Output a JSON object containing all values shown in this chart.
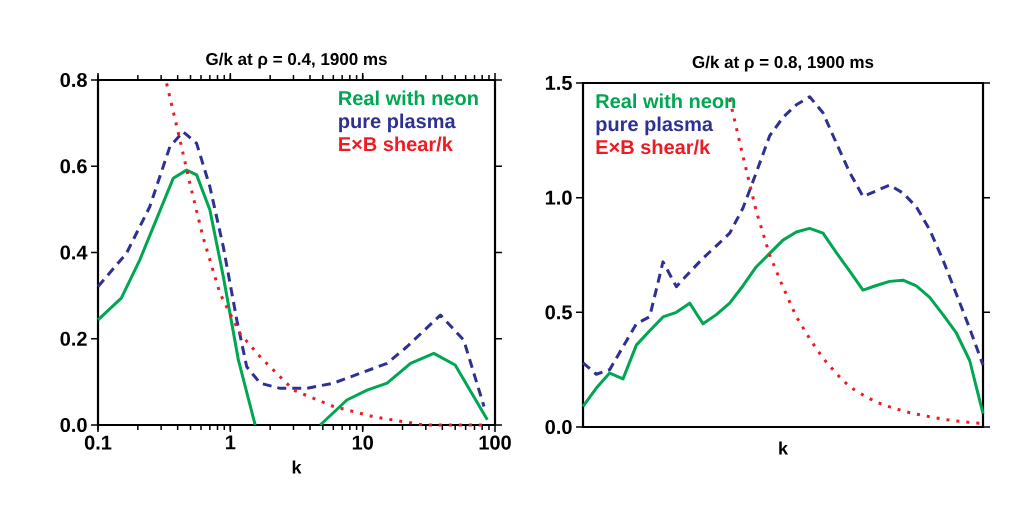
{
  "chart_data": [
    {
      "type": "line",
      "title": "G/k at ρ = 0.4, 1900 ms",
      "xlabel": "k",
      "log": "x",
      "xlim": [
        0.1,
        100
      ],
      "xticks": [
        0.1,
        1,
        10,
        100
      ],
      "ylim": [
        0,
        0.8
      ],
      "yticks": [
        {
          "value": 0,
          "label": "0.0"
        },
        {
          "value": 0.2,
          "label": "0.2"
        },
        {
          "value": 0.4,
          "label": "0.4"
        },
        {
          "value": 0.6,
          "label": "0.6"
        },
        {
          "value": 0.8,
          "label": "0.8"
        }
      ],
      "legend": "top right",
      "grid": false,
      "series": [
        {
          "name": "Real with neon",
          "color": "#00a651",
          "line_style": "solid",
          "x": [
            0.1,
            0.15,
            0.207,
            0.37,
            0.467,
            0.556,
            0.7,
            0.885,
            1.15,
            1.54,
            3,
            4.78,
            7.6,
            10.8,
            15.3,
            23,
            34.5,
            50,
            87.5
          ],
          "values": [
            0.244,
            0.294,
            0.383,
            0.572,
            0.591,
            0.58,
            0.499,
            0.344,
            0.151,
            0.0,
            null,
            0.0,
            0.058,
            0.081,
            0.097,
            0.143,
            0.166,
            0.139,
            0.012
          ]
        },
        {
          "name": "pure plasma",
          "color": "#2e3192",
          "line_style": "dashed",
          "x": [
            0.1,
            0.164,
            0.246,
            0.349,
            0.44,
            0.556,
            0.7,
            0.885,
            1.12,
            1.33,
            1.68,
            2.38,
            3.78,
            6.0,
            9.6,
            15.3,
            21.7,
            38.7,
            58,
            82.6
          ],
          "values": [
            0.321,
            0.398,
            0.506,
            0.645,
            0.68,
            0.653,
            0.553,
            0.413,
            0.243,
            0.135,
            0.097,
            0.085,
            0.085,
            0.097,
            0.12,
            0.143,
            0.182,
            0.255,
            0.197,
            0.043
          ]
        },
        {
          "name": "E×B shear/k",
          "color": "#ed1c24",
          "line_style": "dotted",
          "x": [
            0.33,
            0.416,
            0.495,
            0.62,
            0.835,
            1.18,
            1.68,
            3.0,
            6.0,
            12.1,
            29,
            80
          ],
          "values": [
            0.792,
            0.661,
            0.56,
            0.437,
            0.305,
            0.213,
            0.158,
            0.081,
            0.043,
            0.019,
            0.0,
            0.0
          ]
        }
      ]
    },
    {
      "type": "line",
      "title": "G/k at ρ = 0.8, 1900 ms",
      "xlabel": "k",
      "categories": [
        null,
        null,
        null,
        null,
        null,
        null,
        null,
        null,
        null,
        null,
        null,
        null,
        null,
        null,
        null,
        null,
        null,
        null,
        null,
        null,
        null,
        null,
        null,
        null,
        null,
        null,
        null,
        null,
        null,
        null,
        null
      ],
      "ylim": [
        0,
        1.5
      ],
      "yticks": [
        {
          "value": 0,
          "label": "0.0"
        },
        {
          "value": 0.5,
          "label": "0.5"
        },
        {
          "value": 1.0,
          "label": "1.0"
        },
        {
          "value": 1.5,
          "label": "1.5"
        }
      ],
      "legend": "top left",
      "grid": false,
      "series": [
        {
          "name": "Real with neon",
          "color": "#00a651",
          "line_style": "solid",
          "values": [
            0.09,
            0.17,
            0.235,
            0.21,
            0.357,
            0.42,
            0.48,
            0.5,
            0.54,
            0.45,
            0.49,
            0.54,
            0.616,
            0.699,
            0.757,
            0.815,
            0.85,
            0.866,
            0.845,
            0.76,
            0.68,
            0.597,
            0.617,
            0.635,
            0.64,
            0.615,
            0.565,
            0.49,
            0.41,
            0.29,
            0.058
          ]
        },
        {
          "name": "pure plasma",
          "color": "#2e3192",
          "line_style": "dashed",
          "values": [
            0.28,
            0.23,
            0.25,
            0.35,
            0.45,
            0.481,
            0.72,
            0.612,
            0.675,
            0.736,
            0.79,
            0.845,
            0.955,
            1.11,
            1.27,
            1.35,
            1.405,
            1.44,
            1.37,
            1.238,
            1.11,
            1.005,
            1.03,
            1.055,
            1.02,
            0.96,
            0.86,
            0.728,
            0.58,
            0.43,
            0.27
          ]
        },
        {
          "name": "E×B shear/k",
          "color": "#ed1c24",
          "line_style": "dotted",
          "values": [
            null,
            null,
            null,
            null,
            null,
            null,
            null,
            null,
            null,
            null,
            null,
            1.43,
            1.18,
            0.94,
            0.75,
            0.61,
            0.481,
            0.385,
            0.3,
            0.233,
            0.175,
            0.14,
            0.108,
            0.088,
            0.07,
            0.056,
            0.045,
            0.034,
            0.026,
            0.02,
            0.015
          ]
        }
      ]
    }
  ]
}
